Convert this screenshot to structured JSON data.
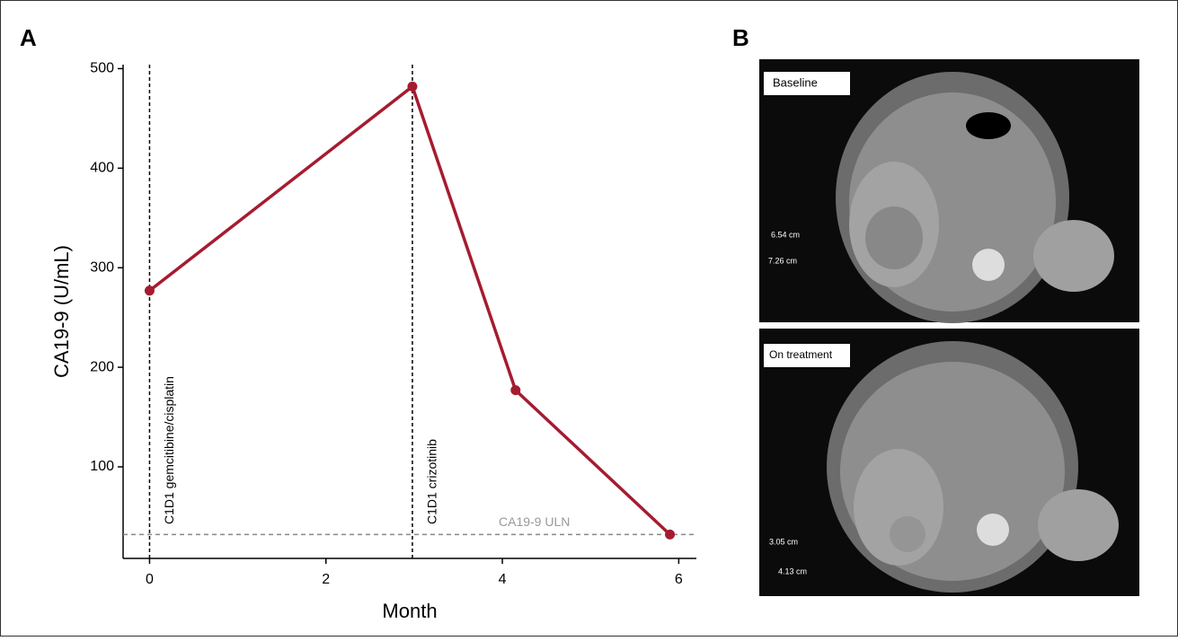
{
  "panels": {
    "a": "A",
    "b": "B"
  },
  "chart_data": {
    "type": "line",
    "xlabel": "Month",
    "ylabel": "CA19-9 (U/mL)",
    "x": [
      0,
      2.98,
      4.15,
      5.9
    ],
    "values": [
      277,
      482,
      177,
      32
    ],
    "color": "#a51c30",
    "xlim": [
      -0.3,
      6.2
    ],
    "ylim": [
      8,
      504
    ],
    "xticks": [
      0,
      2,
      4,
      6
    ],
    "yticks": [
      100,
      200,
      300,
      400,
      500
    ],
    "vlines": [
      {
        "x": 0,
        "label": "C1D1  gemcitibine/cisplatin"
      },
      {
        "x": 2.98,
        "label": "C1D1  crizotinib"
      }
    ],
    "hline": {
      "y": 32,
      "label": "CA19-9 ULN"
    }
  },
  "images": [
    {
      "label": "Baseline",
      "measurements": [
        "6.54 cm",
        "7.26 cm"
      ]
    },
    {
      "label": "On treatment",
      "measurements": [
        "3.05 cm",
        "4.13 cm"
      ]
    }
  ]
}
